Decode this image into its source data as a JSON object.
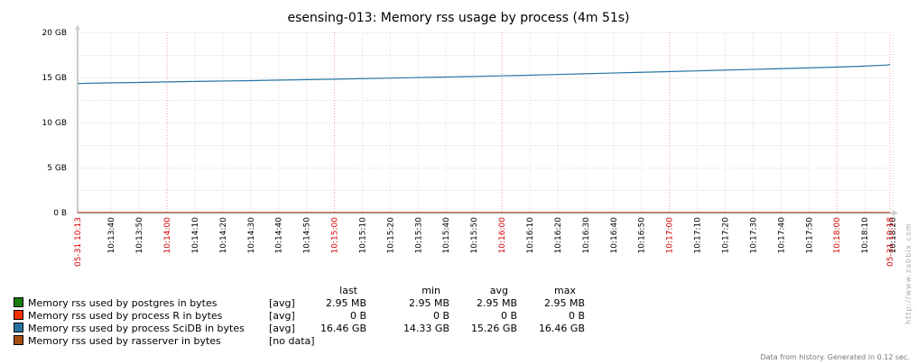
{
  "chart_data": {
    "type": "line",
    "title": "esensing-013: Memory rss usage by process (4m 51s)",
    "y_unit": "GB",
    "ylim": [
      0,
      20
    ],
    "y_ticks": [
      "0 B",
      "5 GB",
      "10 GB",
      "15 GB",
      "20 GB"
    ],
    "x_start": "05-31 10:13",
    "x_end": "05-31 10:18",
    "x_ticks": [
      {
        "label": "10:13:40",
        "major": false
      },
      {
        "label": "10:13:50",
        "major": false
      },
      {
        "label": "10:14:00",
        "major": true
      },
      {
        "label": "10:14:10",
        "major": false
      },
      {
        "label": "10:14:20",
        "major": false
      },
      {
        "label": "10:14:30",
        "major": false
      },
      {
        "label": "10:14:40",
        "major": false
      },
      {
        "label": "10:14:50",
        "major": false
      },
      {
        "label": "10:15:00",
        "major": true
      },
      {
        "label": "10:15:10",
        "major": false
      },
      {
        "label": "10:15:20",
        "major": false
      },
      {
        "label": "10:15:30",
        "major": false
      },
      {
        "label": "10:15:40",
        "major": false
      },
      {
        "label": "10:15:50",
        "major": false
      },
      {
        "label": "10:16:00",
        "major": true
      },
      {
        "label": "10:16:10",
        "major": false
      },
      {
        "label": "10:16:20",
        "major": false
      },
      {
        "label": "10:16:30",
        "major": false
      },
      {
        "label": "10:16:40",
        "major": false
      },
      {
        "label": "10:16:50",
        "major": false
      },
      {
        "label": "10:17:00",
        "major": true
      },
      {
        "label": "10:17:10",
        "major": false
      },
      {
        "label": "10:17:20",
        "major": false
      },
      {
        "label": "10:17:30",
        "major": false
      },
      {
        "label": "10:17:40",
        "major": false
      },
      {
        "label": "10:17:50",
        "major": false
      },
      {
        "label": "10:18:00",
        "major": true
      },
      {
        "label": "10:18:10",
        "major": false
      },
      {
        "label": "10:18:20",
        "major": false
      }
    ],
    "series": [
      {
        "name": "Memory rss used by postgres in bytes",
        "color": "#1a7c11",
        "func": "[avg]",
        "last": "2.95 MB",
        "min": "2.95 MB",
        "avg": "2.95 MB",
        "max": "2.95 MB",
        "points": [
          [
            "10:13:28",
            0.00295
          ],
          [
            "10:18:19",
            0.00295
          ]
        ]
      },
      {
        "name": "Memory rss used by process R in bytes",
        "color": "#f63100",
        "func": "[avg]",
        "last": "0 B",
        "min": "0 B",
        "avg": "0 B",
        "max": "0 B",
        "points": [
          [
            "10:13:28",
            0
          ],
          [
            "10:18:19",
            0
          ]
        ]
      },
      {
        "name": "Memory rss used by process SciDB in bytes",
        "color": "#2774a4",
        "func": "[avg]",
        "last": "16.46 GB",
        "min": "14.33 GB",
        "avg": "15.26 GB",
        "max": "16.46 GB",
        "points": [
          [
            "10:13:28",
            14.33
          ],
          [
            "10:13:38",
            14.4
          ],
          [
            "10:13:48",
            14.44
          ],
          [
            "10:13:58",
            14.5
          ],
          [
            "10:14:08",
            14.55
          ],
          [
            "10:14:18",
            14.6
          ],
          [
            "10:14:28",
            14.64
          ],
          [
            "10:14:38",
            14.7
          ],
          [
            "10:14:48",
            14.75
          ],
          [
            "10:14:58",
            14.8
          ],
          [
            "10:15:08",
            14.86
          ],
          [
            "10:15:18",
            14.92
          ],
          [
            "10:15:28",
            14.98
          ],
          [
            "10:15:38",
            15.04
          ],
          [
            "10:15:48",
            15.1
          ],
          [
            "10:15:58",
            15.17
          ],
          [
            "10:16:08",
            15.24
          ],
          [
            "10:16:18",
            15.32
          ],
          [
            "10:16:28",
            15.4
          ],
          [
            "10:16:38",
            15.48
          ],
          [
            "10:16:48",
            15.56
          ],
          [
            "10:16:58",
            15.64
          ],
          [
            "10:17:08",
            15.72
          ],
          [
            "10:17:18",
            15.8
          ],
          [
            "10:17:28",
            15.88
          ],
          [
            "10:17:38",
            15.96
          ],
          [
            "10:17:48",
            16.05
          ],
          [
            "10:17:58",
            16.14
          ],
          [
            "10:18:08",
            16.24
          ],
          [
            "10:18:18",
            16.38
          ],
          [
            "10:18:19",
            16.46
          ]
        ]
      },
      {
        "name": "Memory rss used by rasserver in bytes",
        "color": "#a54f10",
        "func": "[no data]",
        "last": "",
        "min": "",
        "avg": "",
        "max": "",
        "points": []
      }
    ],
    "legend_columns": [
      "last",
      "min",
      "avg",
      "max"
    ],
    "grid": true
  },
  "watermark": "http://www.zabbix.com",
  "footer": "Data from history. Generated in 0.12 sec."
}
